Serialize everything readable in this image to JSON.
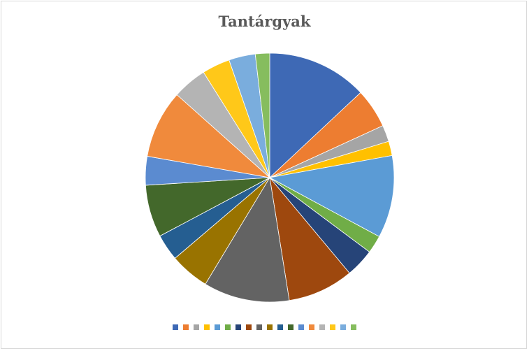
{
  "chart_data": {
    "type": "pie",
    "title": "Tantárgyak",
    "legend_position": "bottom",
    "slices": [
      {
        "value": 14.0,
        "color": "#3E69B5"
      },
      {
        "value": 5.5,
        "color": "#ED7D31"
      },
      {
        "value": 2.3,
        "color": "#A5A5A5"
      },
      {
        "value": 2.0,
        "color": "#FFC000"
      },
      {
        "value": 11.5,
        "color": "#5B9BD5"
      },
      {
        "value": 2.5,
        "color": "#70AD47"
      },
      {
        "value": 4.0,
        "color": "#264478"
      },
      {
        "value": 9.2,
        "color": "#9E480E"
      },
      {
        "value": 12.0,
        "color": "#636363"
      },
      {
        "value": 5.5,
        "color": "#997300"
      },
      {
        "value": 3.7,
        "color": "#255E91"
      },
      {
        "value": 7.3,
        "color": "#43682B"
      },
      {
        "value": 4.0,
        "color": "#5B8BD0"
      },
      {
        "value": 9.5,
        "color": "#F08A3C"
      },
      {
        "value": 4.8,
        "color": "#B4B4B4"
      },
      {
        "value": 3.9,
        "color": "#FFC819"
      },
      {
        "value": 3.7,
        "color": "#7AADDD"
      },
      {
        "value": 2.0,
        "color": "#86BD5E"
      }
    ]
  }
}
